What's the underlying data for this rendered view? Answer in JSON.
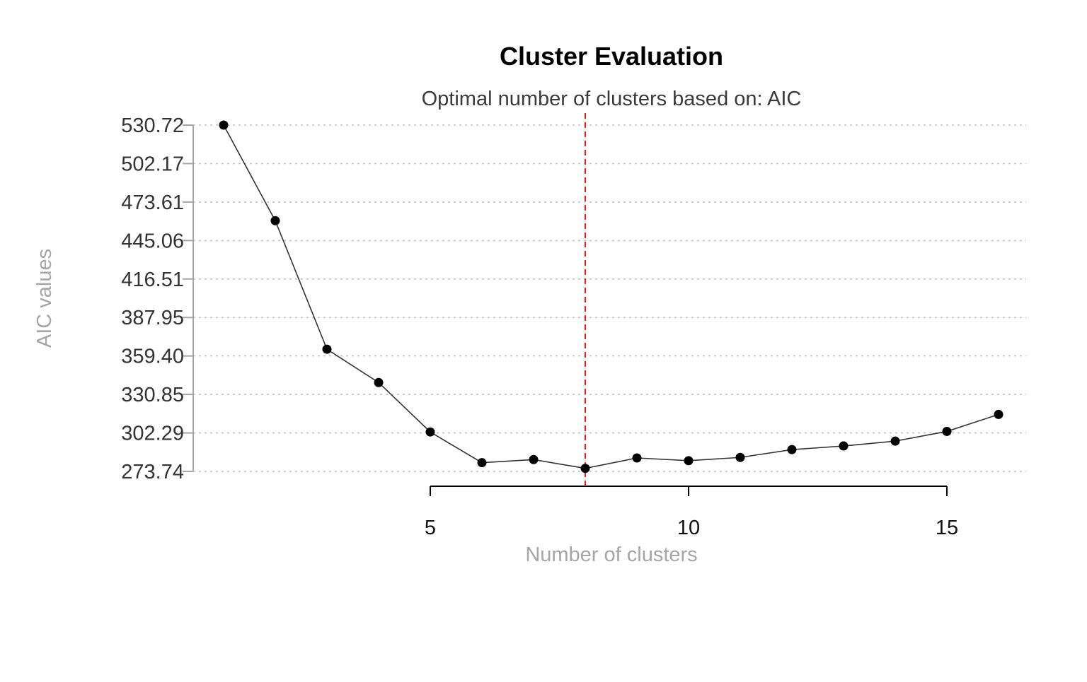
{
  "chart_data": {
    "type": "line",
    "title": "Cluster Evaluation",
    "subtitle": "Optimal number of clusters based on: AIC",
    "xlabel": "Number of clusters",
    "ylabel": "AIC values",
    "x": [
      1,
      2,
      3,
      4,
      5,
      6,
      7,
      8,
      9,
      10,
      11,
      12,
      13,
      14,
      15,
      16
    ],
    "values": [
      530.72,
      459.8,
      364.4,
      339.7,
      303.0,
      280.2,
      282.5,
      276.0,
      283.7,
      281.7,
      284.1,
      289.9,
      292.6,
      296.2,
      303.4,
      316.0
    ],
    "xticks": [
      5,
      10,
      15
    ],
    "xtick_labels": [
      "5",
      "10",
      "15"
    ],
    "xlim": [
      1,
      16
    ],
    "yticks": [
      273.74,
      302.29,
      330.85,
      359.4,
      387.95,
      416.51,
      445.06,
      473.61,
      502.17,
      530.72
    ],
    "ytick_labels": [
      "273.74",
      "302.29",
      "330.85",
      "359.40",
      "387.95",
      "416.51",
      "445.06",
      "473.61",
      "502.17",
      "530.72"
    ],
    "ylim": [
      273.74,
      530.72
    ],
    "optimal_k": 8,
    "grid": "horizontal-dotted",
    "legend": "none",
    "colors": {
      "line": "#333333",
      "points": "#000000",
      "optimal_line": "#e41a1c",
      "grid": "#bdbdbd",
      "y_axis": "#a6a6a6",
      "x_axis": "#000000"
    }
  }
}
